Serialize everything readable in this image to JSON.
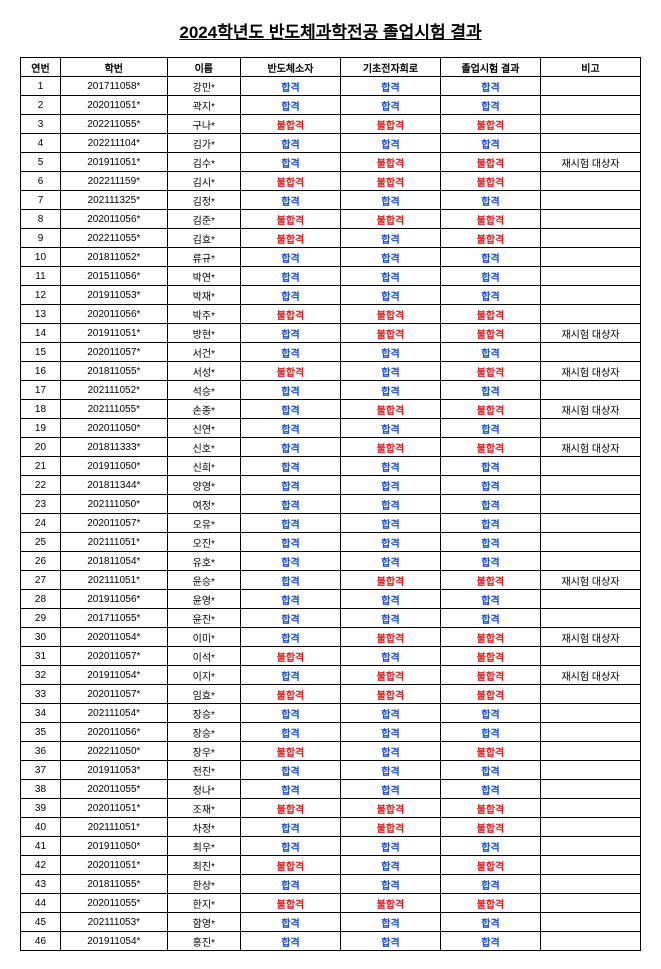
{
  "title": "2024학년도 반도체과학전공 졸업시험 결과",
  "pass_label": "합격",
  "fail_label": "불합격",
  "retest_note": "재시험 대상자",
  "columns": [
    "연번",
    "학번",
    "이름",
    "반도체소자",
    "기초전자회로",
    "졸업시험 결과",
    "비고"
  ],
  "rows": [
    {
      "no": 1,
      "id": "201711058*",
      "name": "강민*",
      "s1": "P",
      "s2": "P",
      "res": "P",
      "note": ""
    },
    {
      "no": 2,
      "id": "202011051*",
      "name": "곽지*",
      "s1": "P",
      "s2": "P",
      "res": "P",
      "note": ""
    },
    {
      "no": 3,
      "id": "202211055*",
      "name": "구나*",
      "s1": "F",
      "s2": "F",
      "res": "F",
      "note": ""
    },
    {
      "no": 4,
      "id": "202211104*",
      "name": "김가*",
      "s1": "P",
      "s2": "P",
      "res": "P",
      "note": ""
    },
    {
      "no": 5,
      "id": "201911051*",
      "name": "김수*",
      "s1": "P",
      "s2": "F",
      "res": "F",
      "note": "R"
    },
    {
      "no": 6,
      "id": "202211159*",
      "name": "김시*",
      "s1": "F",
      "s2": "F",
      "res": "F",
      "note": ""
    },
    {
      "no": 7,
      "id": "202111325*",
      "name": "김정*",
      "s1": "P",
      "s2": "P",
      "res": "P",
      "note": ""
    },
    {
      "no": 8,
      "id": "202011056*",
      "name": "김준*",
      "s1": "F",
      "s2": "F",
      "res": "F",
      "note": ""
    },
    {
      "no": 9,
      "id": "202211055*",
      "name": "김효*",
      "s1": "F",
      "s2": "P",
      "res": "F",
      "note": ""
    },
    {
      "no": 10,
      "id": "201811052*",
      "name": "류규*",
      "s1": "P",
      "s2": "P",
      "res": "P",
      "note": ""
    },
    {
      "no": 11,
      "id": "201511056*",
      "name": "박연*",
      "s1": "P",
      "s2": "P",
      "res": "P",
      "note": ""
    },
    {
      "no": 12,
      "id": "201911053*",
      "name": "박재*",
      "s1": "P",
      "s2": "P",
      "res": "P",
      "note": ""
    },
    {
      "no": 13,
      "id": "202011056*",
      "name": "박주*",
      "s1": "F",
      "s2": "F",
      "res": "F",
      "note": ""
    },
    {
      "no": 14,
      "id": "201911051*",
      "name": "방현*",
      "s1": "P",
      "s2": "F",
      "res": "F",
      "note": "R"
    },
    {
      "no": 15,
      "id": "202011057*",
      "name": "서건*",
      "s1": "P",
      "s2": "P",
      "res": "P",
      "note": ""
    },
    {
      "no": 16,
      "id": "201811055*",
      "name": "서성*",
      "s1": "F",
      "s2": "P",
      "res": "F",
      "note": "R"
    },
    {
      "no": 17,
      "id": "202111052*",
      "name": "석승*",
      "s1": "P",
      "s2": "P",
      "res": "P",
      "note": ""
    },
    {
      "no": 18,
      "id": "202111055*",
      "name": "손종*",
      "s1": "P",
      "s2": "F",
      "res": "F",
      "note": "R"
    },
    {
      "no": 19,
      "id": "202011050*",
      "name": "신연*",
      "s1": "P",
      "s2": "P",
      "res": "P",
      "note": ""
    },
    {
      "no": 20,
      "id": "201811333*",
      "name": "신호*",
      "s1": "P",
      "s2": "F",
      "res": "F",
      "note": "R"
    },
    {
      "no": 21,
      "id": "201911050*",
      "name": "신희*",
      "s1": "P",
      "s2": "P",
      "res": "P",
      "note": ""
    },
    {
      "no": 22,
      "id": "201811344*",
      "name": "양영*",
      "s1": "P",
      "s2": "P",
      "res": "P",
      "note": ""
    },
    {
      "no": 23,
      "id": "202111050*",
      "name": "여정*",
      "s1": "P",
      "s2": "P",
      "res": "P",
      "note": ""
    },
    {
      "no": 24,
      "id": "202011057*",
      "name": "오유*",
      "s1": "P",
      "s2": "P",
      "res": "P",
      "note": ""
    },
    {
      "no": 25,
      "id": "202111051*",
      "name": "오진*",
      "s1": "P",
      "s2": "P",
      "res": "P",
      "note": ""
    },
    {
      "no": 26,
      "id": "201811054*",
      "name": "유호*",
      "s1": "P",
      "s2": "P",
      "res": "P",
      "note": ""
    },
    {
      "no": 27,
      "id": "202111051*",
      "name": "윤승*",
      "s1": "P",
      "s2": "F",
      "res": "F",
      "note": "R"
    },
    {
      "no": 28,
      "id": "201911056*",
      "name": "윤영*",
      "s1": "P",
      "s2": "P",
      "res": "P",
      "note": ""
    },
    {
      "no": 29,
      "id": "201711055*",
      "name": "윤진*",
      "s1": "P",
      "s2": "P",
      "res": "P",
      "note": ""
    },
    {
      "no": 30,
      "id": "202011054*",
      "name": "이미*",
      "s1": "P",
      "s2": "F",
      "res": "F",
      "note": "R"
    },
    {
      "no": 31,
      "id": "202011057*",
      "name": "이석*",
      "s1": "F",
      "s2": "P",
      "res": "F",
      "note": ""
    },
    {
      "no": 32,
      "id": "201911054*",
      "name": "이지*",
      "s1": "P",
      "s2": "F",
      "res": "F",
      "note": "R"
    },
    {
      "no": 33,
      "id": "202011057*",
      "name": "임효*",
      "s1": "F",
      "s2": "F",
      "res": "F",
      "note": ""
    },
    {
      "no": 34,
      "id": "202111054*",
      "name": "장승*",
      "s1": "P",
      "s2": "P",
      "res": "P",
      "note": ""
    },
    {
      "no": 35,
      "id": "202011056*",
      "name": "장승*",
      "s1": "P",
      "s2": "P",
      "res": "P",
      "note": ""
    },
    {
      "no": 36,
      "id": "202211050*",
      "name": "장우*",
      "s1": "F",
      "s2": "P",
      "res": "F",
      "note": ""
    },
    {
      "no": 37,
      "id": "201911053*",
      "name": "전진*",
      "s1": "P",
      "s2": "P",
      "res": "P",
      "note": ""
    },
    {
      "no": 38,
      "id": "202011055*",
      "name": "정나*",
      "s1": "P",
      "s2": "P",
      "res": "P",
      "note": ""
    },
    {
      "no": 39,
      "id": "202011051*",
      "name": "조재*",
      "s1": "F",
      "s2": "F",
      "res": "F",
      "note": ""
    },
    {
      "no": 40,
      "id": "202111051*",
      "name": "차정*",
      "s1": "P",
      "s2": "F",
      "res": "F",
      "note": ""
    },
    {
      "no": 41,
      "id": "201911050*",
      "name": "최우*",
      "s1": "P",
      "s2": "P",
      "res": "P",
      "note": ""
    },
    {
      "no": 42,
      "id": "202011051*",
      "name": "최진*",
      "s1": "F",
      "s2": "P",
      "res": "F",
      "note": ""
    },
    {
      "no": 43,
      "id": "201811055*",
      "name": "한상*",
      "s1": "P",
      "s2": "P",
      "res": "P",
      "note": ""
    },
    {
      "no": 44,
      "id": "202011055*",
      "name": "한지*",
      "s1": "F",
      "s2": "F",
      "res": "F",
      "note": ""
    },
    {
      "no": 45,
      "id": "202111053*",
      "name": "함영*",
      "s1": "P",
      "s2": "P",
      "res": "P",
      "note": ""
    },
    {
      "no": 46,
      "id": "201911054*",
      "name": "홍진*",
      "s1": "P",
      "s2": "P",
      "res": "P",
      "note": ""
    }
  ]
}
